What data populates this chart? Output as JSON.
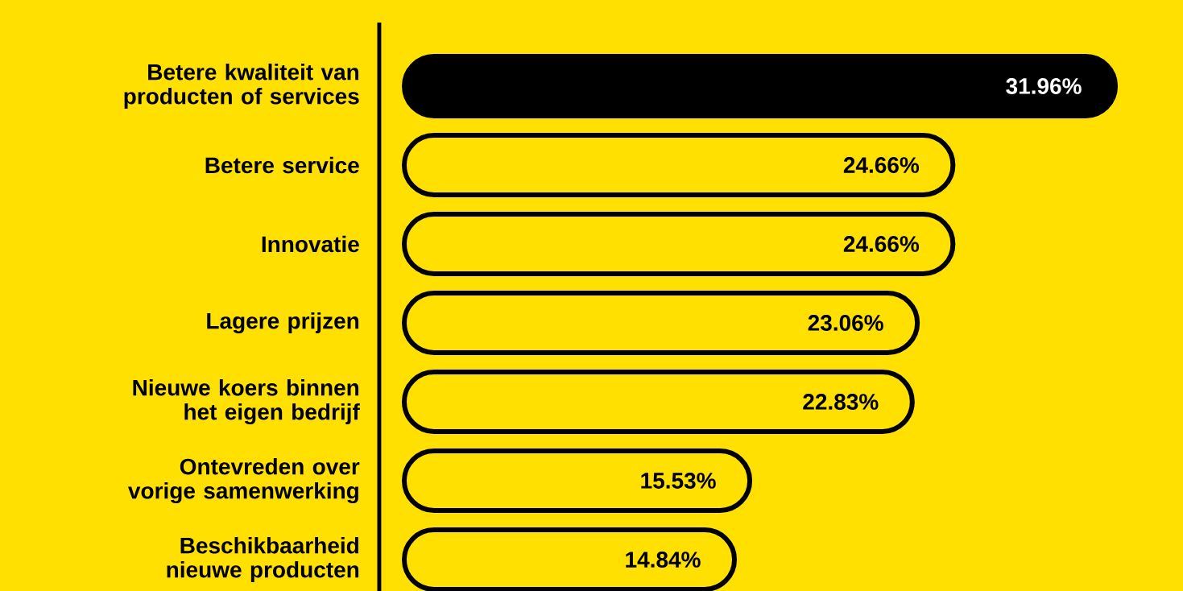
{
  "chart_data": {
    "type": "bar",
    "orientation": "horizontal",
    "categories": [
      "Betere kwaliteit van producten of services",
      "Betere service",
      "Innovatie",
      "Lagere prijzen",
      "Nieuwe koers binnen het eigen bedrijf",
      "Ontevreden over vorige samenwerking",
      "Beschikbaarheid nieuwe producten"
    ],
    "values": [
      31.96,
      24.66,
      24.66,
      23.06,
      22.83,
      15.53,
      14.84
    ],
    "value_labels": [
      "31.96%",
      "24.66%",
      "24.66%",
      "23.06%",
      "22.83%",
      "15.53%",
      "14.84%"
    ],
    "colors": [
      "#000000",
      "#ffe000",
      "#ffe000",
      "#ffe000",
      "#ffe000",
      "#ffe000",
      "#ffe000"
    ]
  }
}
